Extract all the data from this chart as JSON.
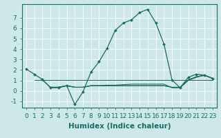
{
  "xlabel": "Humidex (Indice chaleur)",
  "background_color": "#cde8e8",
  "grid_color": "#ffffff",
  "line_color": "#1a6b60",
  "xlim": [
    -0.5,
    23.5
  ],
  "ylim": [
    -1.6,
    8.3
  ],
  "xticks": [
    0,
    1,
    2,
    3,
    4,
    5,
    6,
    7,
    8,
    9,
    10,
    11,
    12,
    13,
    14,
    15,
    16,
    17,
    18,
    19,
    20,
    21,
    22,
    23
  ],
  "yticks": [
    -1,
    0,
    1,
    2,
    3,
    4,
    5,
    6,
    7
  ],
  "main_x": [
    0,
    1,
    2,
    3,
    4,
    5,
    6,
    7,
    8,
    9,
    10,
    11,
    12,
    13,
    14,
    15,
    16,
    17,
    18,
    19,
    20,
    21,
    22,
    23
  ],
  "main_y": [
    2.1,
    1.6,
    1.1,
    0.3,
    0.3,
    0.5,
    -1.3,
    -0.1,
    1.8,
    2.8,
    4.1,
    5.8,
    6.5,
    6.8,
    7.5,
    7.8,
    6.5,
    4.5,
    1.05,
    0.3,
    1.3,
    1.6,
    1.5,
    1.2
  ],
  "line1_x": [
    1,
    2,
    3,
    4,
    5,
    6,
    7,
    8,
    9,
    10,
    11,
    12,
    13,
    14,
    15,
    16,
    17,
    18,
    19,
    20,
    21,
    22,
    23
  ],
  "line1_y": [
    1.05,
    1.05,
    1.05,
    1.05,
    1.05,
    1.05,
    1.05,
    1.05,
    1.05,
    1.05,
    1.05,
    1.05,
    1.05,
    1.05,
    1.05,
    1.05,
    1.05,
    1.05,
    1.05,
    1.05,
    1.05,
    1.05,
    1.05
  ],
  "line2_x": [
    2,
    3,
    4,
    5,
    6,
    7,
    8,
    9,
    10,
    11,
    12,
    13,
    14,
    15,
    16,
    17,
    18,
    19,
    20,
    21,
    22,
    23
  ],
  "line2_y": [
    1.05,
    0.35,
    0.35,
    0.5,
    0.35,
    0.35,
    0.5,
    0.5,
    0.5,
    0.5,
    0.5,
    0.5,
    0.5,
    0.5,
    0.5,
    0.5,
    0.35,
    0.35,
    1.05,
    1.35,
    1.5,
    1.2
  ],
  "line3_x": [
    3,
    4,
    5,
    6,
    7,
    8,
    9,
    10,
    11,
    12,
    13,
    14,
    15,
    16,
    17,
    18,
    19,
    20,
    21,
    22,
    23
  ],
  "line3_y": [
    0.35,
    0.35,
    0.5,
    0.35,
    0.35,
    0.5,
    0.5,
    0.5,
    0.5,
    0.5,
    0.5,
    0.5,
    0.5,
    0.5,
    0.5,
    0.35,
    0.35,
    1.05,
    1.35,
    1.5,
    1.2
  ],
  "line4_x": [
    3,
    4,
    5,
    6,
    7,
    8,
    9,
    10,
    11,
    12,
    13,
    14,
    15,
    16,
    17,
    18,
    19,
    20,
    21,
    22,
    23
  ],
  "line4_y": [
    0.35,
    0.35,
    0.5,
    0.35,
    0.35,
    0.5,
    0.5,
    0.55,
    0.55,
    0.6,
    0.65,
    0.65,
    0.65,
    0.65,
    0.65,
    0.3,
    0.3,
    1.0,
    1.3,
    1.5,
    1.2
  ],
  "xlabel_fontsize": 7.5,
  "tick_fontsize": 6.5
}
